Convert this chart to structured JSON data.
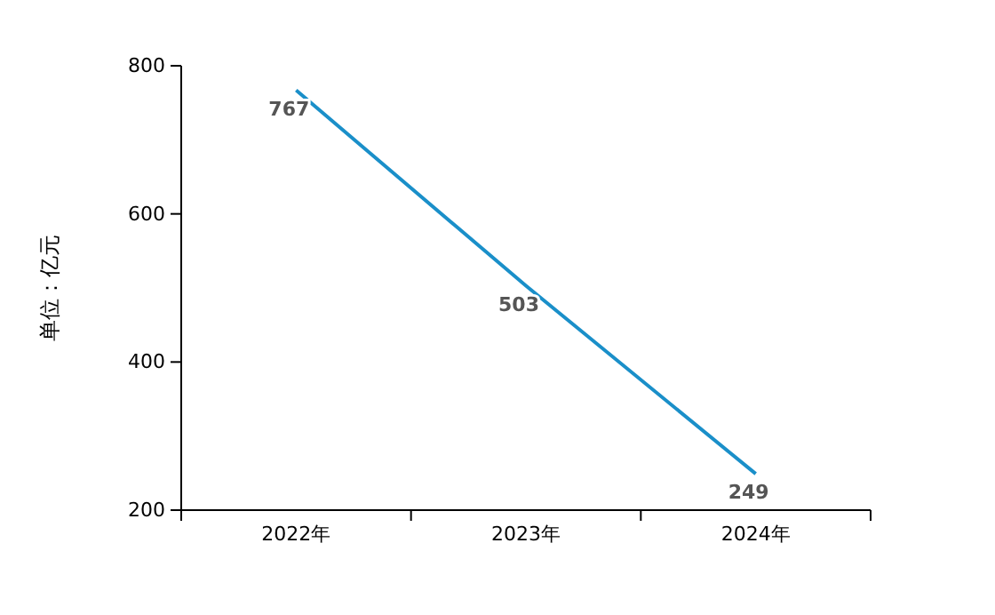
{
  "chart_data": {
    "type": "line",
    "ylabel": "单位：亿元",
    "categories": [
      "2022年",
      "2023年",
      "2024年"
    ],
    "series": [
      {
        "color": "#1a8fc9",
        "values": [
          767,
          503,
          249
        ]
      }
    ],
    "ylim": [
      200,
      800
    ],
    "yticks": [
      200,
      400,
      600,
      800
    ],
    "data_labels": true,
    "marker": "none",
    "line_style": "solid"
  }
}
